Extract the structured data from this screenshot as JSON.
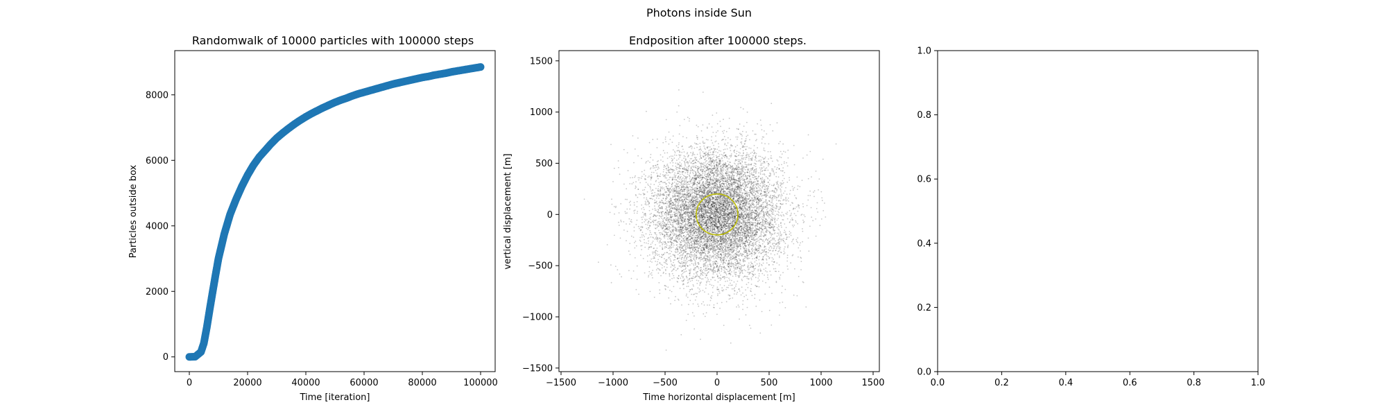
{
  "figure": {
    "suptitle": "Photons inside Sun"
  },
  "colors": {
    "walk": "#1f77b4",
    "scatter": "#000000",
    "circle": "#bfbf00",
    "axes": "#000000",
    "background": "#ffffff"
  },
  "chart_data": [
    {
      "type": "scatter",
      "title": "Randomwalk of 10000 particles with 100000 steps",
      "xlabel": "Time [iteration]",
      "ylabel": "Particles outside box",
      "xlim": [
        -5000,
        105000
      ],
      "ylim": [
        -450,
        9350
      ],
      "xticks": [
        0,
        20000,
        40000,
        60000,
        80000,
        100000
      ],
      "yticks": [
        0,
        2000,
        4000,
        6000,
        8000
      ],
      "grid": false,
      "series": [
        {
          "marker": "circle",
          "x": [
            0,
            2000,
            4000,
            5000,
            6000,
            7000,
            8000,
            9000,
            10000,
            12000,
            14000,
            16000,
            18000,
            20000,
            22000,
            24000,
            26000,
            28000,
            30000,
            32000,
            34000,
            36000,
            38000,
            40000,
            42000,
            44000,
            46000,
            48000,
            50000,
            52000,
            54000,
            56000,
            58000,
            60000,
            62000,
            64000,
            66000,
            68000,
            70000,
            72000,
            74000,
            76000,
            78000,
            80000,
            82000,
            84000,
            86000,
            88000,
            90000,
            92000,
            94000,
            96000,
            98000,
            100000
          ],
          "y": [
            0,
            5,
            150,
            420,
            900,
            1450,
            1980,
            2500,
            3000,
            3750,
            4350,
            4800,
            5200,
            5550,
            5850,
            6100,
            6300,
            6500,
            6680,
            6830,
            6970,
            7100,
            7220,
            7330,
            7430,
            7520,
            7610,
            7690,
            7770,
            7840,
            7900,
            7970,
            8030,
            8080,
            8130,
            8180,
            8230,
            8280,
            8330,
            8370,
            8410,
            8450,
            8490,
            8530,
            8560,
            8600,
            8630,
            8660,
            8700,
            8730,
            8760,
            8790,
            8820,
            8850
          ]
        }
      ]
    },
    {
      "type": "scatter",
      "title": "Endposition after 100000 steps.",
      "xlabel": "Time horizontal displacement [m]",
      "ylabel": "vertical displacement [m]",
      "xlim": [
        -1520,
        1560
      ],
      "ylim": [
        -1535,
        1600
      ],
      "xticks": [
        -1500,
        -1000,
        -500,
        0,
        500,
        1000,
        1500
      ],
      "yticks": [
        -1500,
        -1000,
        -500,
        0,
        500,
        1000,
        1500
      ],
      "grid": false,
      "points": 10000,
      "spread_sd": 316,
      "circle": {
        "center": [
          0,
          0
        ],
        "radius": 200
      }
    },
    {
      "type": "scatter",
      "title": "",
      "xlabel": "",
      "ylabel": "",
      "xlim": [
        0,
        1
      ],
      "ylim": [
        0,
        1
      ],
      "xticks": [
        0.0,
        0.2,
        0.4,
        0.6,
        0.8,
        1.0
      ],
      "yticks": [
        0.0,
        0.2,
        0.4,
        0.6,
        0.8,
        1.0
      ],
      "grid": false,
      "series": []
    }
  ]
}
